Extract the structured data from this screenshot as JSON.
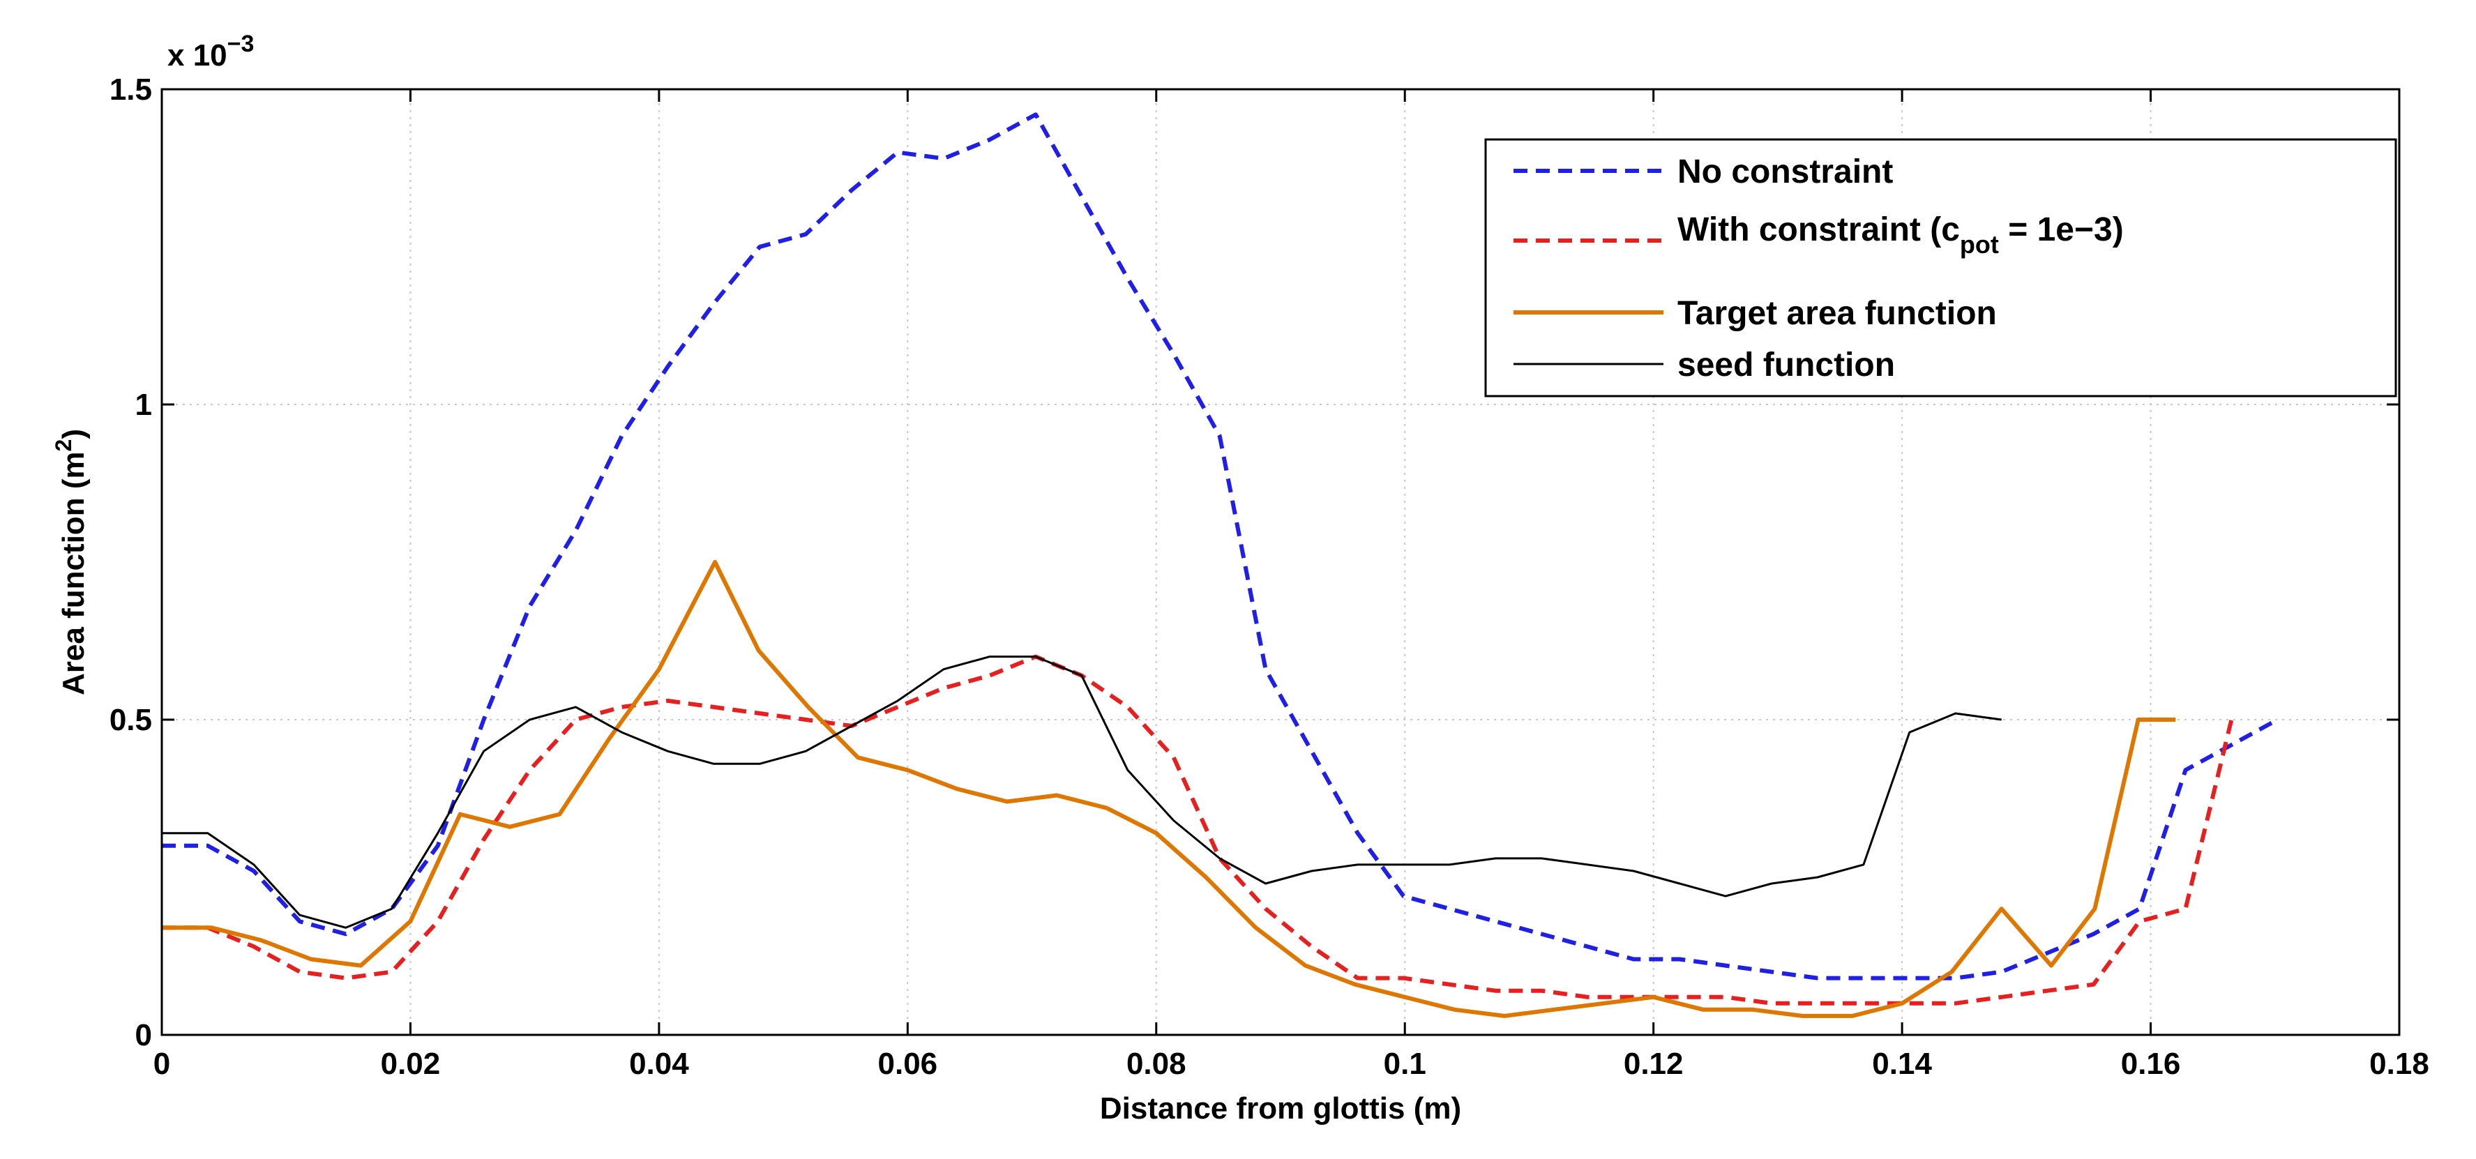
{
  "chart_data": {
    "type": "line",
    "title": "",
    "xlabel": "Distance from glottis (m)",
    "ylabel_text": "Area function (m",
    "ylabel_sup": "2",
    "ylabel_close": ")",
    "xlim": [
      0,
      0.18
    ],
    "ylim": [
      0,
      1.5
    ],
    "y_scale_note": {
      "prefix": "x 10",
      "exponent": "−3"
    },
    "grid": true,
    "legend_position": "top-right",
    "x_ticks": [
      0,
      0.02,
      0.04,
      0.06,
      0.08,
      0.1,
      0.12,
      0.14,
      0.16,
      0.18
    ],
    "x_tick_labels": [
      "0",
      "0.02",
      "0.04",
      "0.06",
      "0.08",
      "0.1",
      "0.12",
      "0.14",
      "0.16",
      "0.18"
    ],
    "y_ticks": [
      0,
      0.5,
      1,
      1.5
    ],
    "y_tick_labels": [
      "0",
      "0.5",
      "1",
      "1.5"
    ],
    "series": [
      {
        "name": "No constraint",
        "color": "#1f1fe6",
        "style": "dashed",
        "x": [
          0,
          0.0037,
          0.0074,
          0.0111,
          0.0148,
          0.0185,
          0.0222,
          0.0259,
          0.0296,
          0.0333,
          0.037,
          0.0407,
          0.0444,
          0.0481,
          0.0518,
          0.0555,
          0.0592,
          0.0629,
          0.0666,
          0.0703,
          0.074,
          0.0777,
          0.0814,
          0.0851,
          0.0888,
          0.0925,
          0.0962,
          0.0999,
          0.1036,
          0.1073,
          0.111,
          0.1147,
          0.1184,
          0.1221,
          0.1258,
          0.1295,
          0.1332,
          0.1369,
          0.1406,
          0.1443,
          0.148,
          0.1517,
          0.1554,
          0.1591,
          0.1628,
          0.1665,
          0.1702
        ],
        "y": [
          0.3,
          0.3,
          0.26,
          0.18,
          0.16,
          0.2,
          0.3,
          0.5,
          0.68,
          0.8,
          0.95,
          1.06,
          1.16,
          1.25,
          1.27,
          1.34,
          1.4,
          1.39,
          1.42,
          1.46,
          1.33,
          1.2,
          1.08,
          0.95,
          0.58,
          0.45,
          0.32,
          0.22,
          0.2,
          0.18,
          0.16,
          0.14,
          0.12,
          0.12,
          0.11,
          0.1,
          0.09,
          0.09,
          0.09,
          0.09,
          0.1,
          0.13,
          0.16,
          0.2,
          0.42,
          0.46,
          0.5
        ]
      },
      {
        "name": "With constraint (c",
        "name_sub": "pot",
        "name_tail": " = 1e−3)",
        "color": "#e61f1f",
        "style": "dashed",
        "x": [
          0,
          0.0037,
          0.0074,
          0.0111,
          0.0148,
          0.0185,
          0.0222,
          0.0259,
          0.0296,
          0.0333,
          0.037,
          0.0407,
          0.0444,
          0.0481,
          0.0518,
          0.0555,
          0.0592,
          0.0629,
          0.0666,
          0.0703,
          0.074,
          0.0777,
          0.0814,
          0.0851,
          0.0888,
          0.0925,
          0.0962,
          0.0999,
          0.1036,
          0.1073,
          0.111,
          0.1147,
          0.1184,
          0.1221,
          0.1258,
          0.1295,
          0.1332,
          0.1369,
          0.1406,
          0.1443,
          0.148,
          0.1517,
          0.1554,
          0.1591,
          0.1628,
          0.1665
        ],
        "y": [
          0.17,
          0.17,
          0.14,
          0.1,
          0.09,
          0.1,
          0.18,
          0.31,
          0.42,
          0.5,
          0.52,
          0.53,
          0.52,
          0.51,
          0.5,
          0.49,
          0.52,
          0.55,
          0.57,
          0.6,
          0.57,
          0.52,
          0.44,
          0.28,
          0.2,
          0.14,
          0.09,
          0.09,
          0.08,
          0.07,
          0.07,
          0.06,
          0.06,
          0.06,
          0.06,
          0.05,
          0.05,
          0.05,
          0.05,
          0.05,
          0.06,
          0.07,
          0.08,
          0.18,
          0.2,
          0.5
        ]
      },
      {
        "name": "Target area function",
        "color": "#dd7700",
        "style": "solid",
        "x": [
          0,
          0.004,
          0.008,
          0.012,
          0.016,
          0.02,
          0.024,
          0.028,
          0.032,
          0.036,
          0.04,
          0.0445,
          0.048,
          0.052,
          0.056,
          0.06,
          0.064,
          0.068,
          0.072,
          0.076,
          0.08,
          0.084,
          0.088,
          0.092,
          0.096,
          0.1,
          0.104,
          0.108,
          0.112,
          0.116,
          0.12,
          0.124,
          0.128,
          0.132,
          0.136,
          0.14,
          0.144,
          0.148,
          0.152,
          0.1555,
          0.159,
          0.162
        ],
        "y": [
          0.17,
          0.17,
          0.15,
          0.12,
          0.11,
          0.18,
          0.35,
          0.33,
          0.35,
          0.47,
          0.58,
          0.75,
          0.61,
          0.52,
          0.44,
          0.42,
          0.39,
          0.37,
          0.38,
          0.36,
          0.32,
          0.25,
          0.17,
          0.11,
          0.08,
          0.06,
          0.04,
          0.03,
          0.04,
          0.05,
          0.06,
          0.04,
          0.04,
          0.03,
          0.03,
          0.05,
          0.1,
          0.2,
          0.11,
          0.2,
          0.5,
          0.5
        ]
      },
      {
        "name": "seed function",
        "color": "#000000",
        "style": "solid",
        "x": [
          0,
          0.0037,
          0.0074,
          0.0111,
          0.0148,
          0.0185,
          0.0222,
          0.0259,
          0.0296,
          0.0333,
          0.037,
          0.0407,
          0.0444,
          0.0481,
          0.0518,
          0.0555,
          0.0592,
          0.0629,
          0.0666,
          0.0703,
          0.074,
          0.0777,
          0.0814,
          0.0851,
          0.0888,
          0.0925,
          0.0962,
          0.0999,
          0.1036,
          0.1073,
          0.111,
          0.1147,
          0.1184,
          0.1221,
          0.1258,
          0.1295,
          0.1332,
          0.1369,
          0.1406,
          0.1443,
          0.148
        ],
        "y": [
          0.32,
          0.32,
          0.27,
          0.19,
          0.17,
          0.2,
          0.32,
          0.45,
          0.5,
          0.52,
          0.48,
          0.45,
          0.43,
          0.43,
          0.45,
          0.49,
          0.53,
          0.58,
          0.6,
          0.6,
          0.57,
          0.42,
          0.34,
          0.28,
          0.24,
          0.26,
          0.27,
          0.27,
          0.27,
          0.28,
          0.28,
          0.27,
          0.26,
          0.24,
          0.22,
          0.24,
          0.25,
          0.27,
          0.48,
          0.51,
          0.5
        ]
      }
    ]
  }
}
